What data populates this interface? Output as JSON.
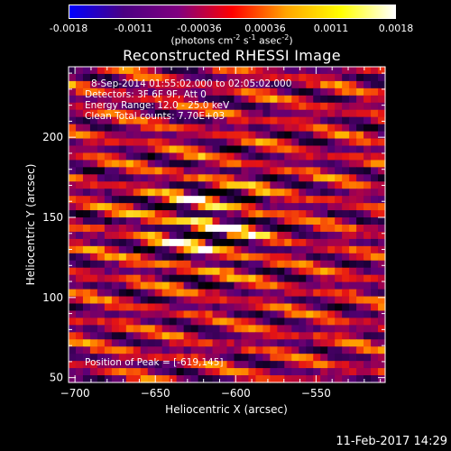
{
  "chart_data": {
    "type": "heatmap",
    "title": "Reconstructed RHESSI Image",
    "xlabel": "Heliocentric X (arcsec)",
    "ylabel": "Heliocentric Y (arcsec)",
    "xlim": [
      -704,
      -507
    ],
    "ylim": [
      47,
      244
    ],
    "x_ticks": [
      -700,
      -650,
      -600,
      -550
    ],
    "y_ticks": [
      50,
      100,
      150,
      200
    ],
    "colorbar": {
      "ticks": [
        "-0.0018",
        "-0.0011",
        "-0.00036",
        "0.00036",
        "0.0011",
        "0.0018"
      ],
      "units_line": "(photons cm",
      "range": [
        -0.0018,
        0.0018
      ],
      "colors": [
        "#0000ff",
        "#4b0082",
        "#800080",
        "#ff0000",
        "#ffa500",
        "#ffff00",
        "#ffffff"
      ]
    },
    "annotations": {
      "time_range": "8-Sep-2014 01:55:02.000 to 02:05:02.000",
      "detectors": "Detectors: 3F 6F 9F, Att 0",
      "energy": "Energy Range: 12.0 - 25.0 keV",
      "clean": "Clean    Total counts: 7.70E+03",
      "peak": "Position of Peak = [-619,145]"
    },
    "peak": {
      "x": -619,
      "y": 145
    }
  },
  "footer": {
    "date": "11-Feb-2017 14:29"
  }
}
